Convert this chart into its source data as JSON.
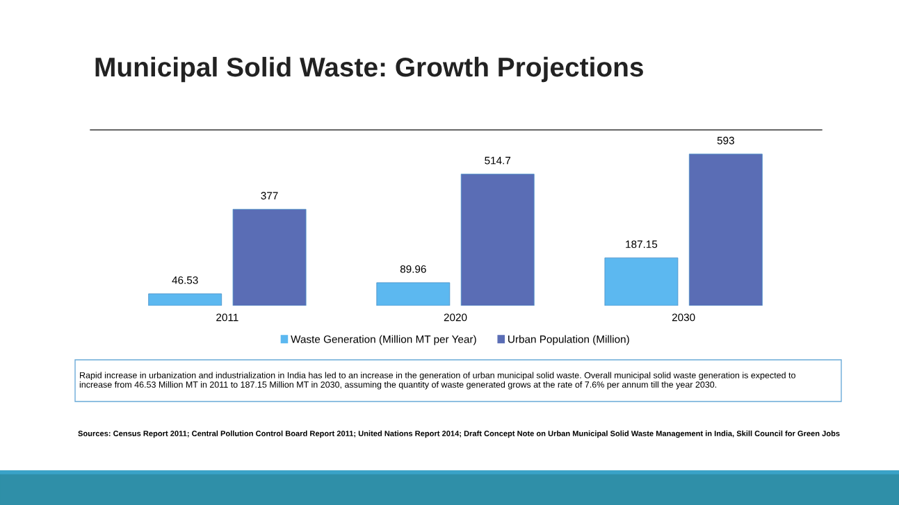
{
  "chart_data": {
    "type": "bar",
    "title": "Municipal Solid Waste: Growth Projections",
    "categories": [
      "2011",
      "2020",
      "2030"
    ],
    "series": [
      {
        "name": "Waste Generation (Million MT per Year)",
        "color": "#5cb8f0",
        "values": [
          46.53,
          89.96,
          187.15
        ]
      },
      {
        "name": "Urban Population (Million)",
        "color": "#5a6db5",
        "values": [
          377,
          514.7,
          593
        ]
      }
    ],
    "data_labels": true,
    "legend": "bottom",
    "grid": false,
    "annotations": [
      "Rapid increase in urbanization and industrialization in India has led to an increase in the generation of urban municipal solid waste. Overall municipal solid waste generation is expected to increase from 46.53 Million MT in 2011 to 187.15 Million MT in 2030, assuming the quantity of waste generated grows at the rate of 7.6% per annum till the year 2030.",
      "Sources: Census Report 2011; Central Pollution Control Board Report 2011; United Nations Report 2014; Draft Concept Note on Urban Municipal Solid Waste Management in India, Skill Council for Green Jobs"
    ]
  }
}
